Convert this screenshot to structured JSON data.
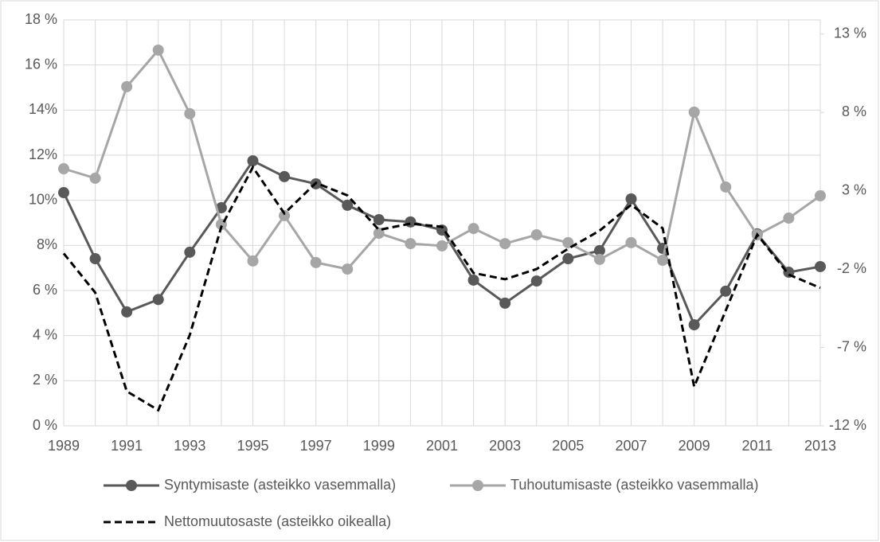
{
  "chart_data": {
    "type": "line",
    "x": [
      1989,
      1990,
      1991,
      1992,
      1993,
      1994,
      1995,
      1996,
      1997,
      1998,
      1999,
      2000,
      2001,
      2002,
      2003,
      2004,
      2005,
      2006,
      2007,
      2008,
      2009,
      2010,
      2011,
      2012,
      2013
    ],
    "xlim": [
      1989,
      2013
    ],
    "xticks": [
      1989,
      1991,
      1993,
      1995,
      1997,
      1999,
      2001,
      2003,
      2005,
      2007,
      2009,
      2011,
      2013
    ],
    "ylim": [
      0,
      18
    ],
    "yticks": [
      {
        "value": 0,
        "label": "0 %"
      },
      {
        "value": 2,
        "label": "2 %"
      },
      {
        "value": 4,
        "label": "4 %"
      },
      {
        "value": 6,
        "label": "6 %"
      },
      {
        "value": 8,
        "label": "8%"
      },
      {
        "value": 10,
        "label": "10%"
      },
      {
        "value": 12,
        "label": "12%"
      },
      {
        "value": 14,
        "label": "14%"
      },
      {
        "value": 16,
        "label": "16 %"
      },
      {
        "value": 18,
        "label": "18 %"
      }
    ],
    "y2lim": [
      -12,
      13.9
    ],
    "y2ticks": [
      {
        "value": -12,
        "label": "-12 %"
      },
      {
        "value": -7,
        "label": "-7 %"
      },
      {
        "value": -2,
        "label": "-2 %"
      },
      {
        "value": 3,
        "label": "3 %"
      },
      {
        "value": 8,
        "label": "8 %"
      },
      {
        "value": 13,
        "label": "13 %"
      }
    ],
    "grid": true,
    "legend": "bottom",
    "series": [
      {
        "name": "Syntymisaste (asteikko vasemmalla)",
        "color": "#595959",
        "marker": true,
        "line_style": "solid",
        "values": [
          10.34,
          7.41,
          5.05,
          5.6,
          7.7,
          9.67,
          11.75,
          11.05,
          10.73,
          9.78,
          9.14,
          9.04,
          8.68,
          6.46,
          5.44,
          6.42,
          7.41,
          7.77,
          10.06,
          7.87,
          4.48,
          5.97,
          8.51,
          6.81,
          7.06
        ]
      },
      {
        "name": "Tuhoutumisaste (asteikko vasemmalla)",
        "color": "#a6a6a6",
        "marker": true,
        "line_style": "solid",
        "values": [
          11.4,
          10.98,
          15.04,
          16.66,
          13.84,
          8.93,
          7.31,
          9.32,
          7.24,
          6.95,
          8.54,
          8.08,
          7.98,
          8.75,
          8.08,
          8.47,
          8.12,
          7.38,
          8.12,
          7.34,
          13.91,
          10.59,
          8.47,
          9.21,
          10.2
        ]
      },
      {
        "name": "Nettomuutosaste (asteikko oikealla)",
        "color": "#000000",
        "marker": false,
        "line_style": "dashed",
        "axis": "y2",
        "values": [
          -1.0,
          -3.5,
          -9.8,
          -11.0,
          -6.2,
          0.7,
          4.5,
          1.55,
          3.5,
          2.7,
          0.5,
          0.9,
          0.7,
          -2.25,
          -2.65,
          -2.0,
          -0.7,
          0.45,
          2.1,
          0.6,
          -9.5,
          -4.65,
          0.2,
          -2.35,
          -3.2
        ]
      }
    ]
  }
}
